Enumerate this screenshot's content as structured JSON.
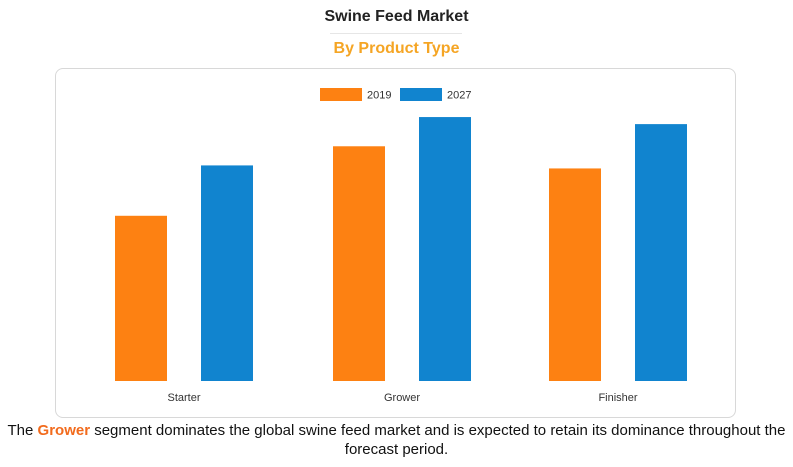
{
  "header": {
    "title": "Swine Feed Market",
    "subtitle": "By Product Type"
  },
  "colors": {
    "series_2019": "#fd8112",
    "series_2027": "#1184cf",
    "highlight": "#f26b1d",
    "subtitle": "#f5a524"
  },
  "chart_data": {
    "type": "bar",
    "categories": [
      "Starter",
      "Grower",
      "Finisher"
    ],
    "series": [
      {
        "name": "2019",
        "values": [
          164,
          233,
          211
        ]
      },
      {
        "name": "2027",
        "values": [
          214,
          262,
          255
        ]
      }
    ],
    "ylim": [
      0,
      270
    ],
    "grid": false,
    "legend": "top-center"
  },
  "caption": {
    "prefix": "The ",
    "highlight": "Grower",
    "suffix": " segment dominates the global swine feed market and is expected to retain its dominance throughout the forecast period."
  }
}
